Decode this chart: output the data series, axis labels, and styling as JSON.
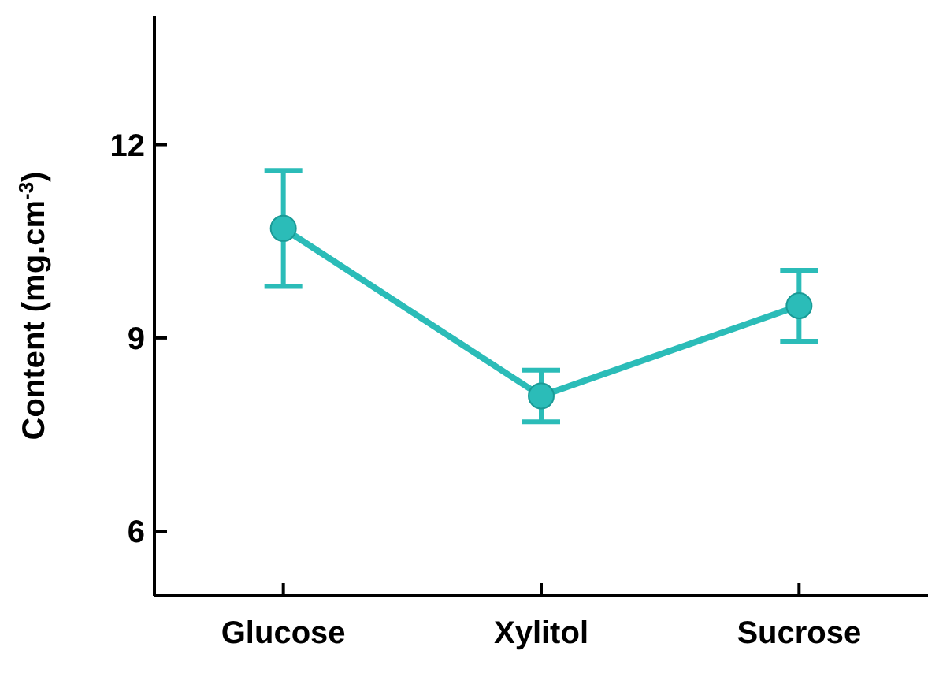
{
  "chart_data": {
    "type": "line",
    "ylabel": "Content (mg.cm$^{-3}$)",
    "categories": [
      "Glucose",
      "Xylitol",
      "Sucrose"
    ],
    "series": [
      {
        "color": "#2bbcb8",
        "values": [
          10.7,
          8.1,
          9.5
        ],
        "errors": [
          0.9,
          0.4,
          0.55
        ]
      }
    ],
    "ylim": [
      5,
      14
    ],
    "yticks": [
      6,
      9,
      12
    ],
    "marker": "circle",
    "line_style": "solid",
    "grid": false,
    "legend": false
  }
}
